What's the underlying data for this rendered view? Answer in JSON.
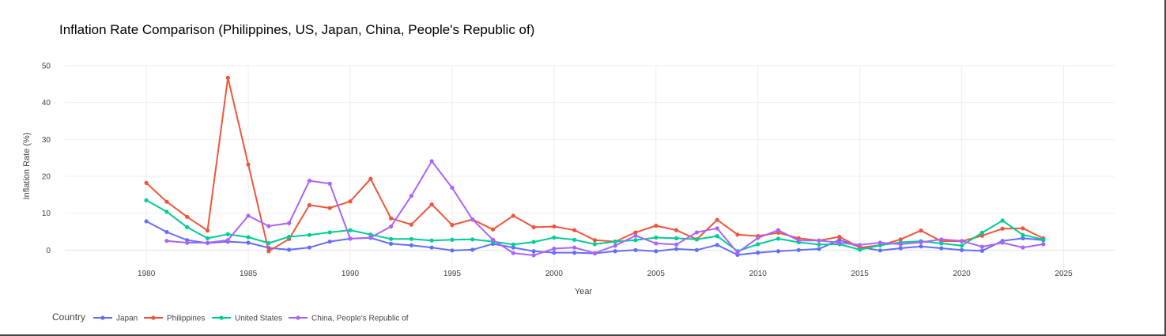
{
  "chart_data": {
    "type": "line",
    "title": "Inflation Rate Comparison (Philippines, US, Japan, China, People's Republic of)",
    "xlabel": "Year",
    "ylabel": "Inflation Rate (%)",
    "xlim": [
      1976,
      2027.5
    ],
    "ylim": [
      -5.5,
      50
    ],
    "xticks": [
      1980,
      1985,
      1990,
      1995,
      2000,
      2005,
      2010,
      2015,
      2020,
      2025
    ],
    "yticks": [
      0,
      10,
      20,
      30,
      40,
      50
    ],
    "grid": true,
    "legend_title": "Country",
    "legend_position": "bottom-left",
    "series": [
      {
        "name": "Japan",
        "color": "#636efa",
        "x": [
          1980,
          1981,
          1982,
          1983,
          1984,
          1985,
          1986,
          1987,
          1988,
          1989,
          1990,
          1991,
          1992,
          1993,
          1994,
          1995,
          1996,
          1997,
          1998,
          1999,
          2000,
          2001,
          2002,
          2003,
          2004,
          2005,
          2006,
          2007,
          2008,
          2009,
          2010,
          2011,
          2012,
          2013,
          2014,
          2015,
          2016,
          2017,
          2018,
          2019,
          2020,
          2021,
          2022,
          2023,
          2024
        ],
        "values": [
          7.8,
          4.9,
          2.7,
          1.9,
          2.3,
          2.0,
          0.6,
          0.1,
          0.7,
          2.3,
          3.1,
          3.3,
          1.7,
          1.3,
          0.7,
          -0.1,
          0.1,
          1.7,
          0.7,
          -0.3,
          -0.7,
          -0.7,
          -0.9,
          -0.3,
          0.0,
          -0.3,
          0.3,
          0.0,
          1.4,
          -1.3,
          -0.7,
          -0.3,
          0.0,
          0.3,
          2.8,
          0.8,
          -0.1,
          0.5,
          1.0,
          0.5,
          0.0,
          -0.2,
          2.5,
          3.2,
          2.7
        ]
      },
      {
        "name": "Philippines",
        "color": "#ef553b",
        "x": [
          1980,
          1981,
          1982,
          1983,
          1984,
          1985,
          1986,
          1987,
          1988,
          1989,
          1990,
          1991,
          1992,
          1993,
          1994,
          1995,
          1996,
          1997,
          1998,
          1999,
          2000,
          2001,
          2002,
          2003,
          2004,
          2005,
          2006,
          2007,
          2008,
          2009,
          2010,
          2011,
          2012,
          2013,
          2014,
          2015,
          2016,
          2017,
          2018,
          2019,
          2020,
          2021,
          2022,
          2023,
          2024
        ],
        "values": [
          18.2,
          13.1,
          9.0,
          5.3,
          46.7,
          23.2,
          -0.3,
          3.0,
          12.2,
          11.4,
          13.2,
          19.3,
          8.6,
          6.9,
          12.4,
          6.8,
          8.3,
          5.6,
          9.3,
          6.2,
          6.4,
          5.4,
          2.7,
          2.3,
          4.8,
          6.6,
          5.4,
          2.9,
          8.2,
          4.2,
          3.8,
          4.7,
          3.2,
          2.6,
          3.6,
          0.7,
          1.3,
          2.9,
          5.3,
          2.4,
          2.4,
          3.9,
          5.8,
          5.9,
          3.2
        ]
      },
      {
        "name": "United States",
        "color": "#00cc96",
        "x": [
          1980,
          1981,
          1982,
          1983,
          1984,
          1985,
          1986,
          1987,
          1988,
          1989,
          1990,
          1991,
          1992,
          1993,
          1994,
          1995,
          1996,
          1997,
          1998,
          1999,
          2000,
          2001,
          2002,
          2003,
          2004,
          2005,
          2006,
          2007,
          2008,
          2009,
          2010,
          2011,
          2012,
          2013,
          2014,
          2015,
          2016,
          2017,
          2018,
          2019,
          2020,
          2021,
          2022,
          2023,
          2024
        ],
        "values": [
          13.5,
          10.4,
          6.2,
          3.2,
          4.3,
          3.5,
          1.9,
          3.6,
          4.1,
          4.8,
          5.4,
          4.2,
          3.0,
          3.0,
          2.6,
          2.8,
          2.9,
          2.3,
          1.5,
          2.2,
          3.4,
          2.8,
          1.6,
          2.3,
          2.7,
          3.4,
          3.2,
          2.9,
          3.8,
          -0.3,
          1.6,
          3.1,
          2.1,
          1.5,
          1.6,
          0.1,
          1.3,
          2.1,
          2.4,
          1.8,
          1.2,
          4.7,
          8.0,
          4.1,
          2.9
        ]
      },
      {
        "name": "China, People's Republic of",
        "color": "#ab63fa",
        "x": [
          1981,
          1982,
          1983,
          1984,
          1985,
          1986,
          1987,
          1988,
          1989,
          1990,
          1991,
          1992,
          1993,
          1994,
          1995,
          1996,
          1997,
          1998,
          1999,
          2000,
          2001,
          2002,
          2003,
          2004,
          2005,
          2006,
          2007,
          2008,
          2009,
          2010,
          2011,
          2012,
          2013,
          2014,
          2015,
          2016,
          2017,
          2018,
          2019,
          2020,
          2021,
          2022,
          2023,
          2024
        ],
        "values": [
          2.5,
          2.0,
          2.0,
          2.7,
          9.3,
          6.5,
          7.3,
          18.8,
          18.0,
          3.1,
          3.4,
          6.4,
          14.7,
          24.1,
          16.9,
          8.3,
          2.8,
          -0.8,
          -1.4,
          0.4,
          0.7,
          -0.8,
          1.2,
          3.9,
          1.8,
          1.5,
          4.8,
          5.9,
          -0.7,
          3.3,
          5.4,
          2.6,
          2.6,
          2.0,
          1.4,
          2.0,
          1.6,
          2.1,
          2.9,
          2.5,
          0.9,
          2.0,
          0.7,
          1.6
        ]
      }
    ]
  }
}
